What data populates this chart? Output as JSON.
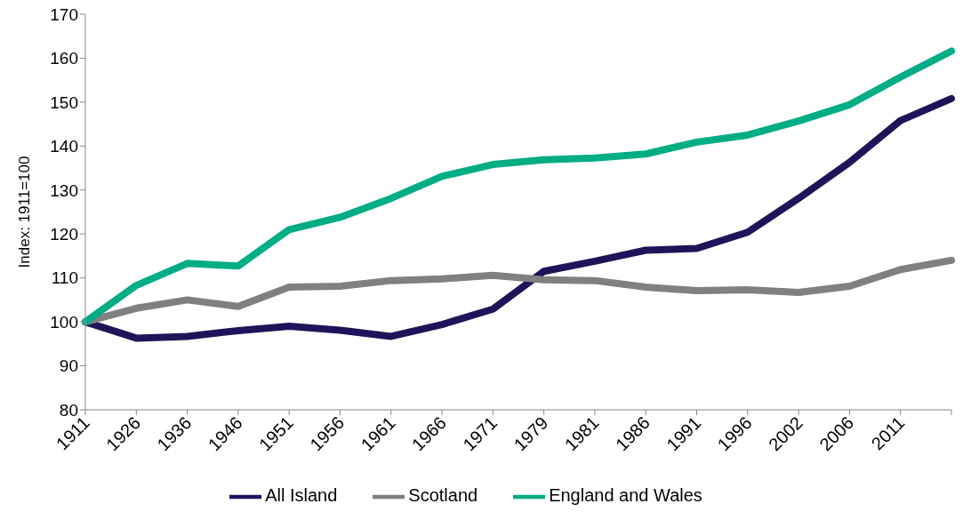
{
  "chart_data": {
    "type": "line",
    "ylabel": "Index: 1911=100",
    "categories": [
      "1911",
      "1926",
      "1936",
      "1946",
      "1951",
      "1956",
      "1961",
      "1966",
      "1971",
      "1979",
      "1981",
      "1986",
      "1991",
      "1996",
      "2002",
      "2006",
      "2011",
      null
    ],
    "series": [
      {
        "name": "All Island",
        "color": "#1f1459",
        "values": [
          100,
          96.3,
          96.7,
          98,
          99,
          98.1,
          96.7,
          99.4,
          102.9,
          111.5,
          113.8,
          116.3,
          116.7,
          120.4,
          128.1,
          136.3,
          145.8,
          150.8
        ]
      },
      {
        "name": "Scotland",
        "color": "#808080",
        "values": [
          100,
          103.1,
          105,
          103.5,
          107.9,
          108.1,
          109.4,
          109.8,
          110.6,
          109.6,
          109.4,
          107.9,
          107.1,
          107.3,
          106.7,
          108.1,
          111.9,
          114
        ]
      },
      {
        "name": "England and Wales",
        "color": "#00ad85",
        "values": [
          100,
          108.3,
          113.3,
          112.7,
          121,
          123.8,
          128.1,
          133.1,
          135.8,
          136.9,
          137.3,
          138.2,
          140.9,
          142.5,
          145.7,
          149.4,
          155.7,
          161.6
        ]
      }
    ],
    "ylim": [
      80,
      170
    ],
    "yticks": [
      80,
      90,
      100,
      110,
      120,
      130,
      140,
      150,
      160,
      170
    ],
    "grid": false,
    "legend": "bottom",
    "marker": "none",
    "line_style": "solid"
  }
}
